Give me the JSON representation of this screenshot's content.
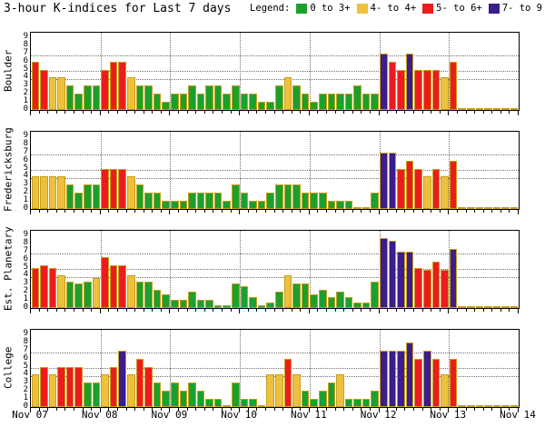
{
  "header": {
    "title": "3-hour K-indices for Last 7 days",
    "legend_label": "Legend:"
  },
  "chart_data": {
    "type": "bar",
    "title": "3-hour K-indices for Last 7 days",
    "interval_hours": 3,
    "bars_per_day": 8,
    "x_tick_labels": [
      "Nov 07",
      "Nov 08",
      "Nov 09",
      "Nov 10",
      "Nov 11",
      "Nov 12",
      "Nov 13",
      "Nov 14"
    ],
    "y_ticks": [
      9,
      8,
      7,
      6,
      5,
      4,
      3,
      2,
      1,
      0
    ],
    "ylim": [
      0,
      9.55
    ],
    "grid": "dotted day boundaries vertical; dotted K thresholds horizontal",
    "threshold_gridlines_k": [
      3.67,
      4.67,
      6.67
    ],
    "color_scale": [
      {
        "label": "0 to 3+",
        "max_k": 3.67,
        "color": "#1CA02C"
      },
      {
        "label": "4- to 4+",
        "max_k": 4.67,
        "color": "#EDC13D"
      },
      {
        "label": "5- to 6+",
        "max_k": 6.67,
        "color": "#ED1C1C"
      },
      {
        "label": "7- to 9",
        "max_k": 9.55,
        "color": "#3B1D8C"
      }
    ],
    "panels": [
      {
        "station": "Boulder",
        "k_values": [
          6,
          5,
          4,
          4,
          3,
          2,
          3,
          3,
          5,
          6,
          6,
          4,
          3,
          3,
          2,
          1,
          2,
          2,
          3,
          2,
          3,
          3,
          2,
          3,
          2,
          2,
          1,
          1,
          3,
          4,
          3,
          2,
          1,
          2,
          2,
          2,
          2,
          3,
          2,
          2,
          7,
          6,
          5,
          7,
          5,
          5,
          5,
          4,
          6,
          0,
          0,
          0,
          0,
          0,
          0,
          0
        ]
      },
      {
        "station": "Fredericksburg",
        "k_values": [
          4,
          4,
          4,
          4,
          3,
          2,
          3,
          3,
          5,
          5,
          5,
          4,
          3,
          2,
          2,
          1,
          1,
          1,
          2,
          2,
          2,
          2,
          1,
          3,
          2,
          1,
          1,
          2,
          3,
          3,
          3,
          2,
          2,
          2,
          1,
          1,
          1,
          0,
          0,
          2,
          7,
          7,
          5,
          6,
          5,
          4,
          5,
          4,
          6,
          0,
          0,
          0,
          0,
          0,
          0,
          0
        ]
      },
      {
        "station": "Est. Planetary",
        "k_values": [
          5,
          5.3,
          5,
          4,
          3.3,
          3,
          3.3,
          3.7,
          6.3,
          5.3,
          5.3,
          4,
          3.3,
          3.3,
          2.3,
          1.7,
          1,
          1,
          2,
          1,
          1,
          0.3,
          0.3,
          3,
          2.7,
          1.3,
          0.3,
          0.7,
          2,
          4,
          3,
          3,
          1.7,
          2.3,
          1.3,
          2,
          1.3,
          0.7,
          0.7,
          3.3,
          8.7,
          8.3,
          7,
          7,
          5,
          4.7,
          5.7,
          4.7,
          7.3,
          0,
          0,
          0,
          0,
          0,
          0,
          0
        ]
      },
      {
        "station": "College",
        "k_values": [
          4,
          5,
          4,
          5,
          5,
          5,
          3,
          3,
          4,
          5,
          7,
          4,
          6,
          5,
          3,
          2,
          3,
          2,
          3,
          2,
          1,
          1,
          0,
          3,
          1,
          1,
          0,
          4,
          4,
          6,
          4,
          2,
          1,
          2,
          3,
          4,
          1,
          1,
          1,
          2,
          7,
          7,
          7,
          8,
          6,
          7,
          6,
          4,
          6,
          0,
          0,
          0,
          0,
          0,
          0,
          0
        ]
      }
    ]
  }
}
